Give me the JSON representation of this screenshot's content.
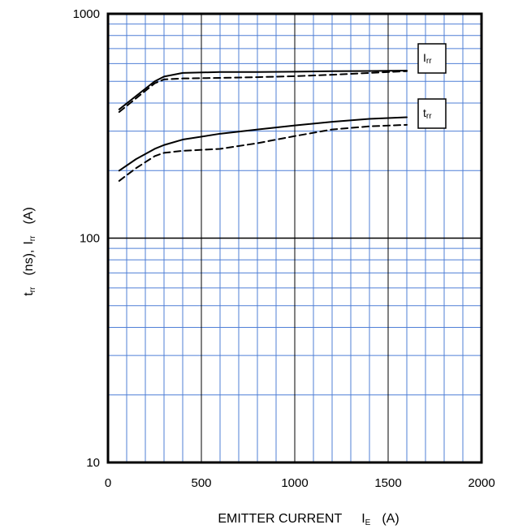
{
  "chart_data": {
    "type": "line",
    "xlabel": {
      "main": "EMITTER CURRENT",
      "symbol": "I",
      "sub": "E",
      "unit": "(A)"
    },
    "ylabel": {
      "t_symbol": "t",
      "t_sub": "rr",
      "t_unit": "(ns),",
      "i_symbol": "I",
      "i_sub": "rr",
      "i_unit": "(A)"
    },
    "xlim": [
      0,
      2000
    ],
    "ylim": [
      10,
      1000
    ],
    "yscale": "log",
    "xticks": [
      0,
      500,
      1000,
      1500,
      2000
    ],
    "xtick_labels": [
      "0",
      "500",
      "1000",
      "1500",
      "2000"
    ],
    "yticks": [
      10,
      100,
      1000
    ],
    "ytick_labels": [
      "10",
      "100",
      "1000"
    ],
    "grid": true,
    "colors": {
      "grid_minor": "#4f7fd6",
      "grid_major": "#000000",
      "line": "#000000"
    },
    "legend": [
      {
        "symbol": "I",
        "sub": "rr",
        "placement": "upper-right"
      },
      {
        "symbol": "t",
        "sub": "rr",
        "placement": "right"
      }
    ],
    "series": [
      {
        "curve": "Irr",
        "style": "solid",
        "x": [
          60,
          150,
          250,
          300,
          400,
          600,
          800,
          1000,
          1200,
          1400,
          1600
        ],
        "y": [
          375,
          430,
          500,
          525,
          545,
          550,
          550,
          552,
          555,
          556,
          558
        ]
      },
      {
        "curve": "Irr",
        "style": "dashed",
        "x": [
          60,
          150,
          250,
          300,
          400,
          600,
          800,
          1000,
          1200,
          1400,
          1600
        ],
        "y": [
          365,
          420,
          490,
          510,
          515,
          518,
          522,
          527,
          535,
          545,
          555
        ]
      },
      {
        "curve": "trr",
        "style": "solid",
        "x": [
          60,
          150,
          250,
          300,
          400,
          600,
          800,
          1000,
          1200,
          1400,
          1600
        ],
        "y": [
          200,
          225,
          250,
          260,
          275,
          292,
          305,
          318,
          330,
          340,
          346
        ]
      },
      {
        "curve": "trr",
        "style": "dashed",
        "x": [
          60,
          150,
          250,
          300,
          400,
          600,
          800,
          1000,
          1200,
          1400,
          1600
        ],
        "y": [
          180,
          205,
          232,
          240,
          245,
          250,
          265,
          285,
          305,
          315,
          320
        ]
      }
    ]
  }
}
